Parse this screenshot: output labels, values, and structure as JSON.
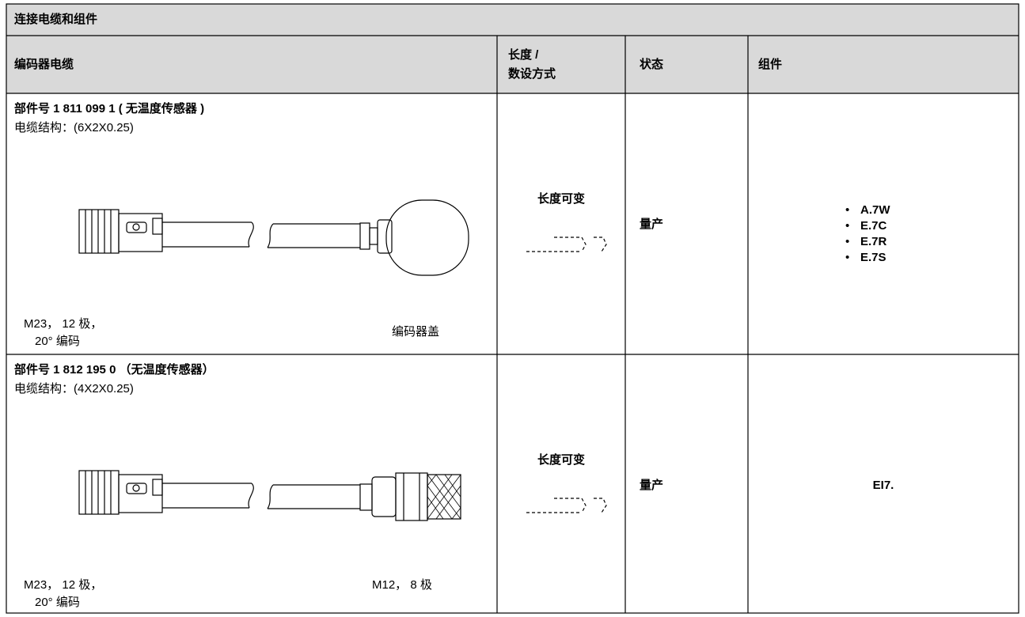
{
  "title": "连接电缆和组件",
  "columns": [
    [
      "编码器电缆"
    ],
    [
      "长度 /",
      "数设方式"
    ],
    [
      "状态"
    ],
    [
      "组件"
    ]
  ],
  "rows": [
    {
      "part": "部件号 1 811 099 1 ( 无温度传感器 )",
      "structure": "电缆结构：(6X2X0.25)",
      "left_label": [
        "M23， 12 极，",
        "20° 编码"
      ],
      "right_label": "编码器盖",
      "length": "长度可变",
      "status": "量产",
      "components": [
        "A.7W",
        "E.7C",
        "E.7R",
        "E.7S"
      ]
    },
    {
      "part": "部件号 1 812 195 0 （无温度传感器）",
      "structure": "电缆结构：(4X2X0.25)",
      "left_label": [
        "M23， 12 极，",
        "20° 编码"
      ],
      "right_label": "M12， 8 极",
      "length": "长度可变",
      "status": "量产",
      "components": [
        "EI7."
      ]
    }
  ]
}
